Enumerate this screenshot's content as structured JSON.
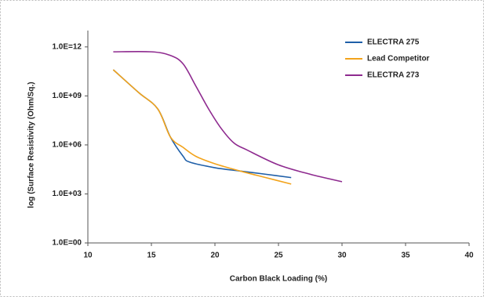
{
  "chart_data": {
    "type": "line",
    "xlabel": "Carbon Black Loading (%)",
    "ylabel": "log (Surface Resistivity (Ohm/Sq.)",
    "xlim": [
      10,
      40
    ],
    "xticks": [
      10,
      15,
      20,
      25,
      30,
      35,
      40
    ],
    "ylim": [
      1,
      10000000000000.0
    ],
    "log_y": true,
    "yticks": [
      {
        "value": 1,
        "label": "1.0E=00"
      },
      {
        "value": 1000,
        "label": "1.0E+03"
      },
      {
        "value": 1000000,
        "label": "1.0E+06"
      },
      {
        "value": 1000000000,
        "label": "1.0E+09"
      },
      {
        "value": 1000000000000,
        "label": "1.0E=12"
      }
    ],
    "legend": "upper right",
    "series": [
      {
        "name": "ELECTRA 275",
        "color": "#1f5fa8",
        "x": [
          12,
          14,
          15.5,
          16.5,
          17.5,
          18,
          20,
          22,
          24,
          26
        ],
        "values": [
          40000000000,
          1600000000,
          160000000,
          3000000,
          200000,
          90000,
          40000,
          25000,
          16000,
          10000
        ]
      },
      {
        "name": "Lead Competitor",
        "color": "#f2a31b",
        "x": [
          12,
          14,
          15.5,
          16.5,
          17.5,
          18.5,
          20,
          22,
          24,
          26
        ],
        "values": [
          40000000000,
          1600000000,
          160000000,
          3000000,
          700000,
          200000,
          70000,
          25000,
          10000,
          4000
        ]
      },
      {
        "name": "ELECTRA 273",
        "color": "#8e2a8f",
        "x": [
          12,
          15,
          16.5,
          17.5,
          18.5,
          19.5,
          20.5,
          21.5,
          22.5,
          25,
          27.5,
          30
        ],
        "values": [
          500000000000,
          500000000000,
          300000000000,
          90000000000,
          4000000000,
          160000000,
          10000000,
          1300000,
          500000,
          60000,
          16000,
          5600
        ]
      }
    ]
  }
}
